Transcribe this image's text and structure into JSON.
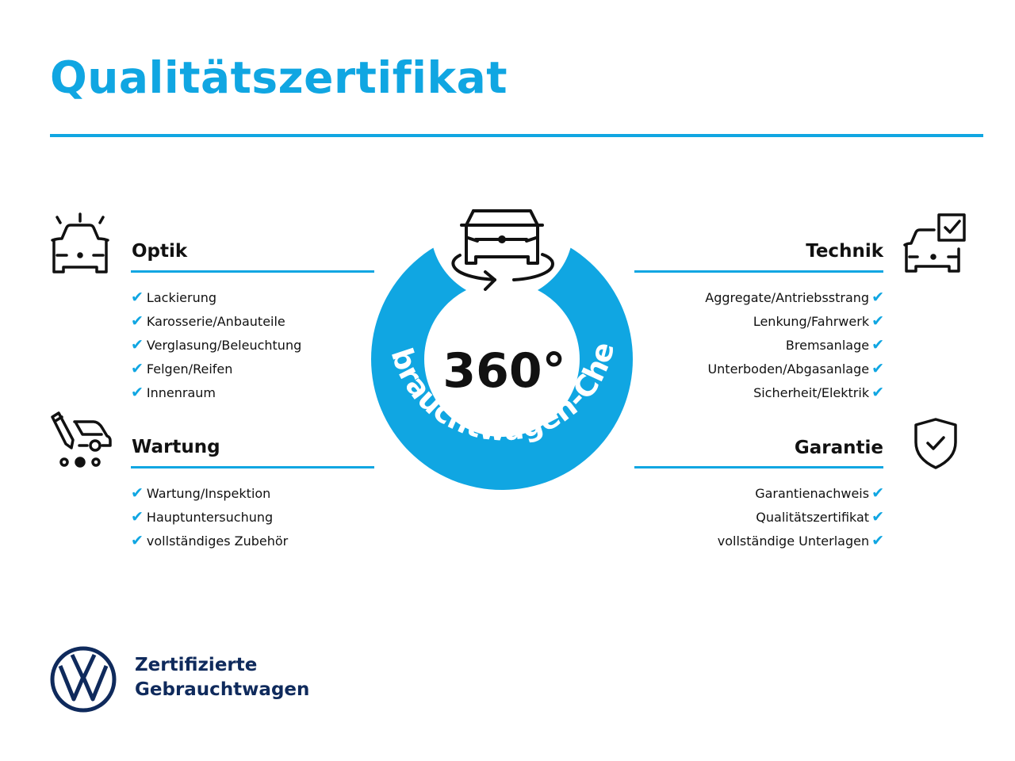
{
  "title": "Qualitätszertifikat",
  "accent_color": "#10a6e2",
  "brand_color": "#0f2a5c",
  "check_icon": "checkmark-icon",
  "sections": {
    "optik": {
      "heading": "Optik",
      "icon": "car-lights-icon",
      "items": [
        "Lackierung",
        "Karosserie/Anbauteile",
        "Verglasung/Beleuchtung",
        "Felgen/Reifen",
        "Innenraum"
      ]
    },
    "wartung": {
      "heading": "Wartung",
      "icon": "service-van-icon",
      "items": [
        "Wartung/Inspektion",
        "Hauptuntersuchung",
        "vollständiges Zubehör"
      ]
    },
    "technik": {
      "heading": "Technik",
      "icon": "car-checklist-icon",
      "items": [
        "Aggregate/Antriebsstrang",
        "Lenkung/Fahrwerk",
        "Bremsanlage",
        "Unterboden/Abgasanlage",
        "Sicherheit/Elektrik"
      ]
    },
    "garantie": {
      "heading": "Garantie",
      "icon": "shield-check-icon",
      "items": [
        "Garantienachweis",
        "Qualitätszertifikat",
        "vollständige Unterlagen"
      ]
    }
  },
  "badge": {
    "value": "360°",
    "ring_text": "Gebrauchtwagen-Check",
    "icon": "car-rotate-icon"
  },
  "footer": {
    "line1": "Zertifizierte",
    "line2": "Gebrauchtwagen",
    "logo": "vw-logo"
  }
}
